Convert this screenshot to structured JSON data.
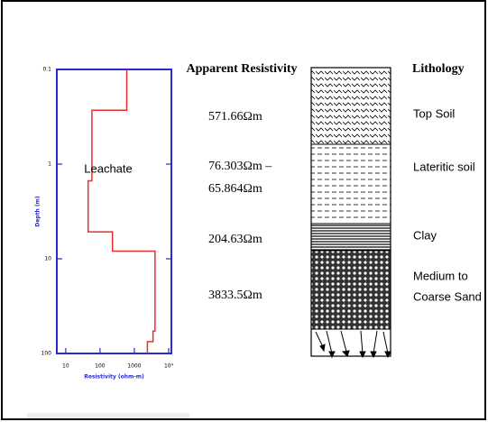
{
  "chart_data": {
    "type": "line",
    "xlabel": "Resistivity (ohm-m)",
    "ylabel": "Depth (m)",
    "annotation": "Leachate",
    "x": [
      600,
      600,
      58,
      58,
      45,
      45,
      230,
      230,
      4000,
      4000,
      3500,
      3500,
      2400,
      2400
    ],
    "y": [
      0.1,
      0.27,
      0.27,
      1.5,
      1.5,
      5.2,
      5.2,
      8.3,
      8.3,
      58,
      58,
      75,
      75,
      100
    ],
    "color": "#e83030",
    "axis_color": "#2a2ad0",
    "xlim": [
      5.5,
      12000
    ],
    "ylim": [
      0.1,
      100
    ],
    "xlog": true,
    "ylog": true,
    "y_inverted": true,
    "xticks": [
      10,
      100,
      1000,
      {
        "value": 10000,
        "label": "10⁴"
      }
    ],
    "yticks": [
      0.1,
      1,
      10,
      100
    ]
  },
  "resistivity_column": {
    "title": "Apparent Resistivity",
    "labels": [
      "571.66Ωm",
      "76.303Ωm –",
      "65.864Ωm",
      "204.63Ωm",
      "3833.5Ωm"
    ]
  },
  "lithology": {
    "title": "Lithology",
    "labels": [
      "Top Soil",
      "Lateritic soil",
      "Clay",
      "Medium to",
      "Coarse Sand"
    ]
  }
}
